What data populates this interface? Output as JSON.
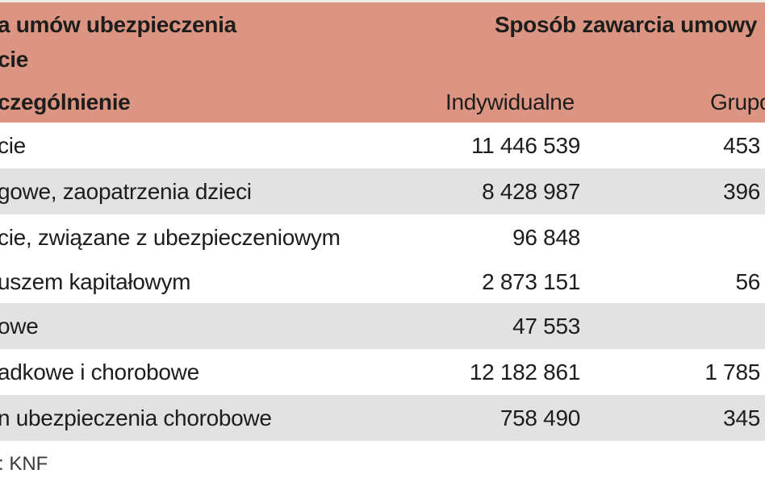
{
  "header": {
    "title_line1": "a umów ubezpieczenia",
    "title_line2": "cie",
    "column_label": "czególnienie",
    "group_title": "Sposób zawarcia umowy",
    "subcolumns": [
      "Indywidualne",
      "Grupo"
    ]
  },
  "rows": [
    {
      "label": "cie",
      "individual": "11 446 539",
      "group": "453"
    },
    {
      "label": "gowe, zaopatrzenia dzieci",
      "individual": "8 428 987",
      "group": "396"
    },
    {
      "label_line1": "cie, związane z ubezpieczeniowym",
      "individual_line1": "96 848",
      "group_line1": "",
      "label_line2": "uszem kapitałowym",
      "individual_line2": "2 873 151",
      "group_line2": "56"
    },
    {
      "label": "owe",
      "individual": "47 553",
      "group": ""
    },
    {
      "label": "adkowe i chorobowe",
      "individual": "12 182 861",
      "group": "1 785"
    },
    {
      "label": "n ubezpieczenia chorobowe",
      "individual": "758 490",
      "group": "345"
    }
  ],
  "footer": {
    "source": ": KNF"
  },
  "colors": {
    "header_bg": "#dc9583",
    "stripe_bg": "#e1e2e1",
    "text": "#1d1d1b"
  }
}
